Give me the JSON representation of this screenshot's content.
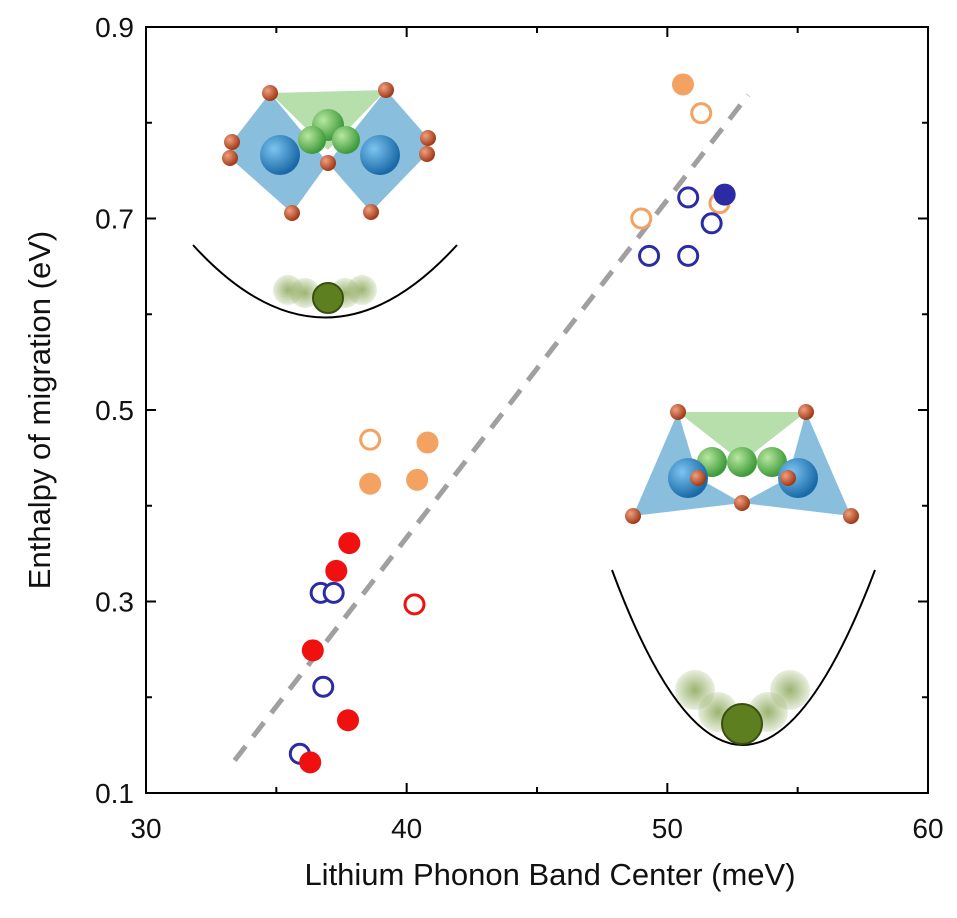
{
  "chart_data": {
    "type": "scatter",
    "xlabel": "Lithium Phonon Band Center (meV)",
    "ylabel": "Enthalpy of migration (eV)",
    "xlim": [
      30,
      60
    ],
    "ylim": [
      0.1,
      0.9
    ],
    "xticks": [
      30,
      40,
      50,
      60
    ],
    "yticks": [
      0.1,
      0.3,
      0.5,
      0.7,
      0.9
    ],
    "xminor_ticks": [
      35,
      45,
      55
    ],
    "yminor_ticks": [
      0.2,
      0.4,
      0.6,
      0.8
    ],
    "series": [
      {
        "color": "#f4a261",
        "filled": true,
        "x": [
          50.6,
          38.6,
          40.4,
          40.8
        ],
        "values": [
          0.84,
          0.423,
          0.427,
          0.466
        ]
      },
      {
        "color": "#f4a261",
        "filled": false,
        "x": [
          51.3,
          49.0,
          52.0,
          38.6
        ],
        "values": [
          0.81,
          0.7,
          0.716,
          0.469
        ]
      },
      {
        "color": "#2b2ba6",
        "filled": true,
        "x": [
          52.2
        ],
        "values": [
          0.725
        ]
      },
      {
        "color": "#2b2ba6",
        "filled": false,
        "x": [
          50.8,
          51.7,
          49.3,
          50.8,
          36.7,
          37.2,
          36.8,
          35.9
        ],
        "values": [
          0.722,
          0.695,
          0.661,
          0.661,
          0.309,
          0.309,
          0.211,
          0.141
        ]
      },
      {
        "color": "#f01010",
        "filled": true,
        "x": [
          37.8,
          37.3,
          36.4,
          37.75,
          36.3
        ],
        "values": [
          0.361,
          0.332,
          0.249,
          0.176,
          0.132
        ]
      },
      {
        "color": "#f01010",
        "filled": false,
        "x": [
          40.3
        ],
        "values": [
          0.297
        ]
      }
    ],
    "trend_line": {
      "color": "#a0a0a0",
      "x": [
        33.4,
        53.1
      ],
      "y": [
        0.134,
        0.829
      ]
    }
  }
}
